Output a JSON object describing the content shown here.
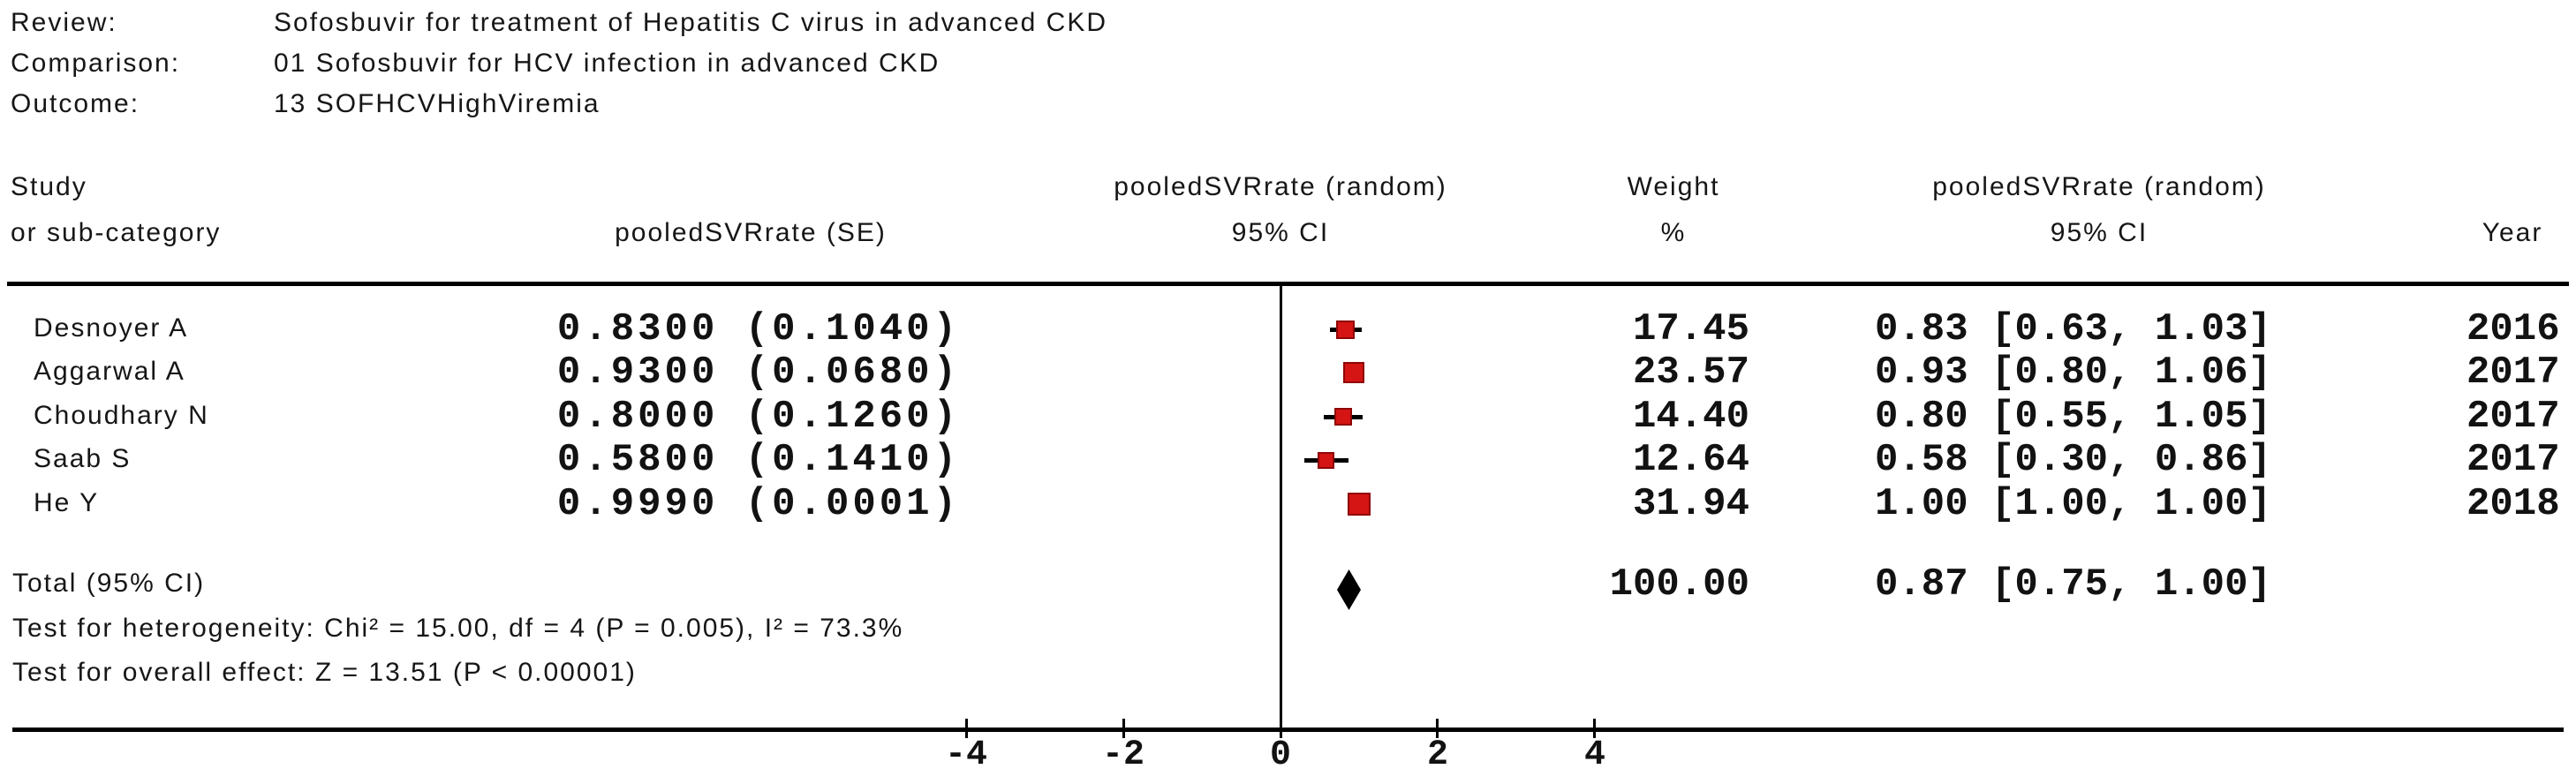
{
  "header": {
    "review_label": "Review:",
    "review_value": "Sofosbuvir for treatment of Hepatitis C virus in advanced CKD",
    "comparison_label": "Comparison:",
    "comparison_value": "01 Sofosbuvir for HCV infection in advanced CKD",
    "outcome_label": "Outcome:",
    "outcome_value": "13 SOFHCVHighViremia"
  },
  "columns": {
    "study_line1": "Study",
    "study_line2": "or sub-category",
    "se_header": "pooledSVRrate (SE)",
    "plot_header_line1": "pooledSVRrate (random)",
    "plot_header_line2": "95% CI",
    "weight_line1": "Weight",
    "weight_line2": "%",
    "ci_header_line1": "pooledSVRrate (random)",
    "ci_header_line2": "95% CI",
    "year_header": "Year"
  },
  "chart_data": {
    "type": "scatter",
    "plot_style": "forest",
    "effect_measure": "pooledSVRrate (random) 95% CI",
    "model": "random",
    "axis": {
      "ticks": [
        -4,
        -2,
        0,
        2,
        4
      ],
      "zero_line": 0,
      "xlim": [
        -8.2,
        16.5
      ]
    },
    "studies": [
      {
        "name": "Desnoyer A",
        "se_text": "0.8300 (0.1040)",
        "estimate": 0.83,
        "ci_low": 0.63,
        "ci_high": 1.03,
        "weight": 17.45,
        "weight_text": "17.45",
        "ci_text": "0.83 [0.63, 1.03]",
        "year": "2016"
      },
      {
        "name": "Aggarwal A",
        "se_text": "0.9300 (0.0680)",
        "estimate": 0.93,
        "ci_low": 0.8,
        "ci_high": 1.06,
        "weight": 23.57,
        "weight_text": "23.57",
        "ci_text": "0.93 [0.80, 1.06]",
        "year": "2017"
      },
      {
        "name": "Choudhary N",
        "se_text": "0.8000 (0.1260)",
        "estimate": 0.8,
        "ci_low": 0.55,
        "ci_high": 1.05,
        "weight": 14.4,
        "weight_text": "14.40",
        "ci_text": "0.80 [0.55, 1.05]",
        "year": "2017"
      },
      {
        "name": "Saab S",
        "se_text": "0.5800 (0.1410)",
        "estimate": 0.58,
        "ci_low": 0.3,
        "ci_high": 0.86,
        "weight": 12.64,
        "weight_text": "12.64",
        "ci_text": "0.58 [0.30, 0.86]",
        "year": "2017"
      },
      {
        "name": "He Y",
        "se_text": "0.9990 (0.0001)",
        "estimate": 0.999,
        "ci_low": 1.0,
        "ci_high": 1.0,
        "weight": 31.94,
        "weight_text": "31.94",
        "ci_text": "1.00 [1.00, 1.00]",
        "year": "2018"
      }
    ],
    "total": {
      "label": "Total (95% CI)",
      "estimate": 0.87,
      "ci_low": 0.75,
      "ci_high": 1.0,
      "weight_text": "100.00",
      "ci_text": "0.87 [0.75, 1.00]"
    },
    "heterogeneity_text": "Test for heterogeneity: Chi² = 15.00, df = 4 (P = 0.005), I² = 73.3%",
    "overall_effect_text": "Test for overall effect: Z = 13.51 (P < 0.00001)"
  },
  "colors": {
    "marker_red": "#d51414",
    "marker_border": "#8f0606",
    "line_black": "#000000",
    "text": "#161616"
  }
}
